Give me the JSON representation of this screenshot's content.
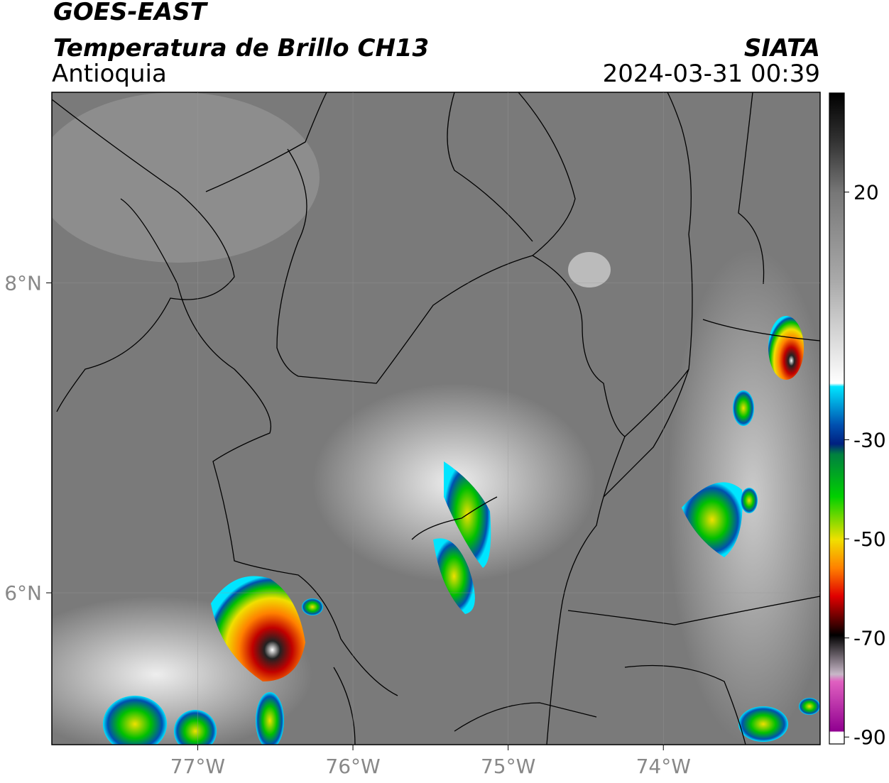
{
  "header": {
    "title": "GOES-EAST",
    "subtitle": "Temperatura de Brillo CH13",
    "region": "Antioquia",
    "brand": "SIATA",
    "timestamp": "2024-03-31 00:39"
  },
  "map": {
    "xlim": [
      -77.94,
      -72.99
    ],
    "ylim": [
      5.02,
      9.23
    ],
    "xticks": [
      {
        "value": -77,
        "label": "77°W"
      },
      {
        "value": -76,
        "label": "76°W"
      },
      {
        "value": -75,
        "label": "75°W"
      },
      {
        "value": -74,
        "label": "74°W"
      }
    ],
    "yticks": [
      {
        "value": 8,
        "label": "8°N"
      },
      {
        "value": 6,
        "label": "6°N"
      }
    ]
  },
  "colorbar": {
    "lim": [
      -91.4,
      40
    ],
    "ticks": [
      20,
      -30,
      -50,
      -70,
      -90
    ]
  }
}
